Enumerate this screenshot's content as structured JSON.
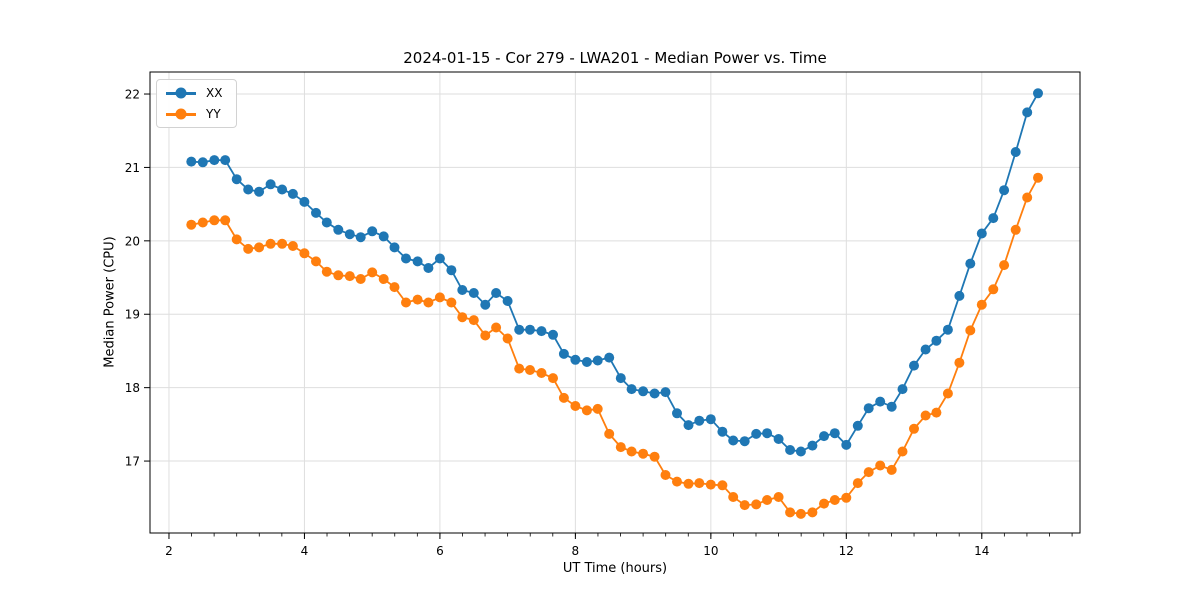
{
  "figure": {
    "background": "#ffffff",
    "frame_color": "#000000",
    "tick_color": "#000000"
  },
  "chart_data": {
    "type": "line",
    "title": "2024-01-15 - Cor 279 - LWA201 - Median Power vs. Time",
    "xlabel": "UT Time (hours)",
    "ylabel": "Median Power (CPU)",
    "xlim": [
      1.72,
      15.45
    ],
    "ylim": [
      16.02,
      22.3
    ],
    "xticks": [
      2,
      4,
      6,
      8,
      10,
      12,
      14
    ],
    "yticks": [
      17,
      18,
      19,
      20,
      21,
      22
    ],
    "x_minor_tick_step": 0.33333,
    "grid": true,
    "grid_color": "#dedede",
    "legend_position": "upper left",
    "x": [
      2.33,
      2.5,
      2.67,
      2.83,
      3,
      3.17,
      3.33,
      3.5,
      3.67,
      3.83,
      4,
      4.17,
      4.33,
      4.5,
      4.67,
      4.83,
      5,
      5.17,
      5.33,
      5.5,
      5.67,
      5.83,
      6,
      6.17,
      6.33,
      6.5,
      6.67,
      6.83,
      7,
      7.17,
      7.33,
      7.5,
      7.67,
      7.83,
      8,
      8.17,
      8.33,
      8.5,
      8.67,
      8.83,
      9,
      9.17,
      9.33,
      9.5,
      9.67,
      9.83,
      10,
      10.17,
      10.33,
      10.5,
      10.67,
      10.83,
      11,
      11.17,
      11.33,
      11.5,
      11.67,
      11.83,
      12,
      12.17,
      12.33,
      12.5,
      12.67,
      12.83,
      13,
      13.17,
      13.33,
      13.5,
      13.67,
      13.83,
      14,
      14.17,
      14.33,
      14.5,
      14.67,
      14.83
    ],
    "series": [
      {
        "name": "XX",
        "color": "#1f77b4",
        "values": [
          21.08,
          21.07,
          21.1,
          21.1,
          20.84,
          20.7,
          20.67,
          20.77,
          20.7,
          20.64,
          20.53,
          20.38,
          20.25,
          20.15,
          20.09,
          20.05,
          20.13,
          20.06,
          19.91,
          19.76,
          19.72,
          19.63,
          19.76,
          19.6,
          19.33,
          19.29,
          19.13,
          19.29,
          19.18,
          18.79,
          18.79,
          18.77,
          18.72,
          18.46,
          18.38,
          18.35,
          18.37,
          18.41,
          18.13,
          17.98,
          17.95,
          17.92,
          17.94,
          17.65,
          17.49,
          17.55,
          17.57,
          17.4,
          17.28,
          17.27,
          17.37,
          17.38,
          17.3,
          17.15,
          17.13,
          17.21,
          17.34,
          17.38,
          17.22,
          17.48,
          17.72,
          17.81,
          17.74,
          17.98,
          18.3,
          18.52,
          18.64,
          18.79,
          19.25,
          19.69,
          20.1,
          20.31,
          20.69,
          21.21,
          21.75,
          22.01
        ]
      },
      {
        "name": "YY",
        "color": "#ff7f0e",
        "values": [
          20.22,
          20.25,
          20.28,
          20.28,
          20.02,
          19.89,
          19.91,
          19.96,
          19.96,
          19.93,
          19.83,
          19.72,
          19.58,
          19.53,
          19.52,
          19.48,
          19.57,
          19.48,
          19.37,
          19.16,
          19.2,
          19.16,
          19.23,
          19.16,
          18.96,
          18.92,
          18.71,
          18.82,
          18.67,
          18.26,
          18.24,
          18.2,
          18.13,
          17.86,
          17.75,
          17.69,
          17.71,
          17.37,
          17.19,
          17.13,
          17.1,
          17.06,
          16.81,
          16.72,
          16.69,
          16.7,
          16.68,
          16.67,
          16.51,
          16.4,
          16.41,
          16.47,
          16.51,
          16.3,
          16.28,
          16.3,
          16.42,
          16.47,
          16.5,
          16.7,
          16.85,
          16.94,
          16.88,
          17.13,
          17.44,
          17.62,
          17.66,
          17.92,
          18.34,
          18.78,
          19.13,
          19.34,
          19.67,
          20.15,
          20.59,
          20.86
        ]
      }
    ]
  }
}
